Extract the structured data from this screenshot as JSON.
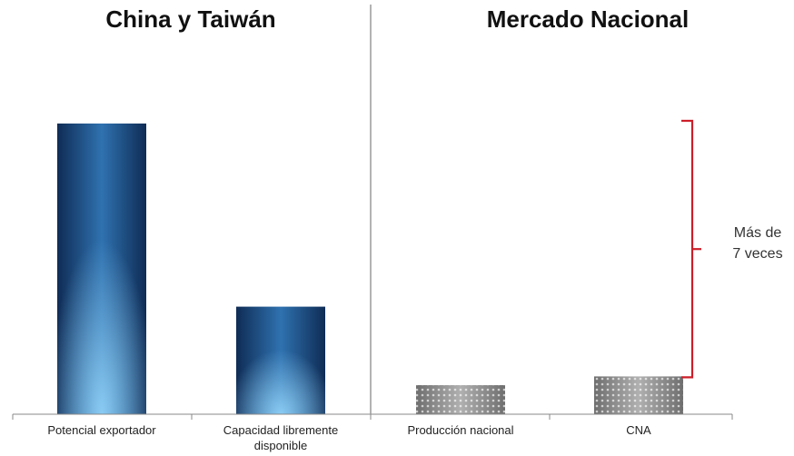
{
  "chart_data": {
    "type": "bar",
    "panels": [
      {
        "title": "China y Taiwán",
        "categories": [
          "Potencial exportador",
          "Capacidad libremente|disponible"
        ],
        "values": [
          100,
          37
        ],
        "style": "blue"
      },
      {
        "title": "Mercado Nacional",
        "categories": [
          "Producción nacional",
          "CNA"
        ],
        "values": [
          10,
          13
        ],
        "style": "gray-pattern"
      }
    ],
    "ylim": [
      0,
      100
    ],
    "annotation": {
      "lines": [
        "Más de",
        "7 veces"
      ],
      "color": "#cc1f2a"
    },
    "colors": {
      "blue_dark": "#0f2c55",
      "blue_mid": "#2a6aa8",
      "blue_light": "#7fc2ee",
      "gray": "#8a8a8a",
      "axis": "#888888",
      "divider": "#9a9a9a"
    }
  }
}
